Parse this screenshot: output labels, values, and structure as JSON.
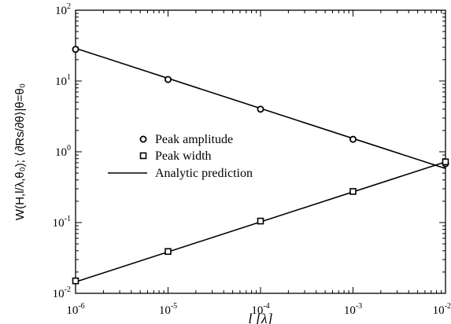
{
  "chart_data": {
    "type": "line",
    "xscale": "log",
    "yscale": "log",
    "xlim": [
      1e-06,
      0.01
    ],
    "ylim": [
      0.01,
      100
    ],
    "x_ticks": [
      {
        "base": "10",
        "exp": "-6"
      },
      {
        "base": "10",
        "exp": "-5"
      },
      {
        "base": "10",
        "exp": "-4"
      },
      {
        "base": "10",
        "exp": "-3"
      },
      {
        "base": "10",
        "exp": "-2"
      }
    ],
    "y_ticks": [
      {
        "base": "10",
        "exp": "-2"
      },
      {
        "base": "10",
        "exp": "-1"
      },
      {
        "base": "10",
        "exp": "0"
      },
      {
        "base": "10",
        "exp": "1"
      },
      {
        "base": "10",
        "exp": "2"
      }
    ],
    "xlabel": "l [λ]",
    "ylabel": "W(H,l/λ,θ₀); ⟨∂Rs/∂θ⟩|θ=θ₀",
    "grid": false,
    "legend_position": "center-left",
    "series": [
      {
        "name": "Peak amplitude",
        "marker": "circle",
        "line": false,
        "x": [
          1e-06,
          1e-05,
          0.0001,
          0.001,
          0.01
        ],
        "y": [
          28,
          10.5,
          4.0,
          1.5,
          0.68
        ]
      },
      {
        "name": "Peak width",
        "marker": "square",
        "line": false,
        "x": [
          1e-06,
          1e-05,
          0.0001,
          0.001,
          0.01
        ],
        "y": [
          0.015,
          0.039,
          0.105,
          0.275,
          0.72
        ]
      },
      {
        "name": "Analytic prediction",
        "marker": "none",
        "line": true,
        "lines": [
          {
            "x": [
              1e-06,
              0.01
            ],
            "y": [
              29,
              0.58
            ]
          },
          {
            "x": [
              1e-06,
              0.01
            ],
            "y": [
              0.0145,
              0.72
            ]
          }
        ]
      }
    ]
  }
}
